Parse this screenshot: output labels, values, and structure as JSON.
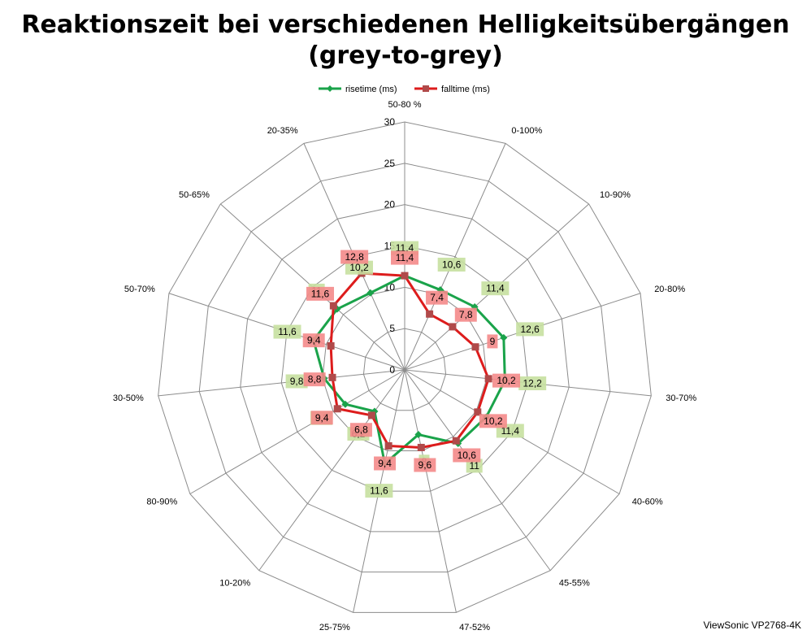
{
  "chart_data": {
    "type": "radar",
    "title_line1": "Reaktionszeit bei verschiedenen Helligkeitsübergängen",
    "title_line2": "(grey-to-grey)",
    "categories": [
      "50-80 %",
      "0-100%",
      "10-90%",
      "20-80%",
      "30-70%",
      "40-60%",
      "45-55%",
      "47-52%",
      "25-75%",
      "10-20%",
      "80-90%",
      "30-50%",
      "50-70%",
      "50-65%",
      "20-35%"
    ],
    "rlim": [
      0,
      30
    ],
    "ticks": [
      0,
      5,
      10,
      15,
      20,
      25,
      30
    ],
    "tick_labels": [
      "0",
      "5",
      "10",
      "15",
      "20",
      "25",
      "30"
    ],
    "legend_position": "top",
    "series": [
      {
        "name": "risetime (ms)",
        "color": "#1aa34a",
        "label_bg": "#c6e0a0",
        "values": [
          11.4,
          10.6,
          11.4,
          12.6,
          12.2,
          11.4,
          11,
          8,
          11.6,
          6.2,
          8.3,
          9.8,
          11.6,
          11,
          10.2
        ],
        "labels": [
          "11,4",
          "10,6",
          "11,4",
          "12,6",
          "12,2",
          "11,4",
          "11",
          "8",
          "11,6",
          "6,2",
          "8,3",
          "9,8",
          "11,6",
          "11",
          "10,2"
        ]
      },
      {
        "name": "falltime (ms)",
        "color": "#dd1c1c",
        "label_bg": "#f48a8a",
        "values": [
          11.4,
          7.4,
          7.8,
          9,
          10.2,
          10.2,
          10.6,
          9.6,
          9.4,
          6.8,
          9.4,
          8.8,
          9.4,
          11.6,
          12.8
        ],
        "labels": [
          "11,4",
          "7,4",
          "7,8",
          "9",
          "10,2",
          "10,2",
          "10,6",
          "9,6",
          "9,4",
          "6,8",
          "9,4",
          "8,8",
          "9,4",
          "11,6",
          "12,8"
        ]
      }
    ]
  },
  "credit": "ViewSonic VP2768-4K"
}
